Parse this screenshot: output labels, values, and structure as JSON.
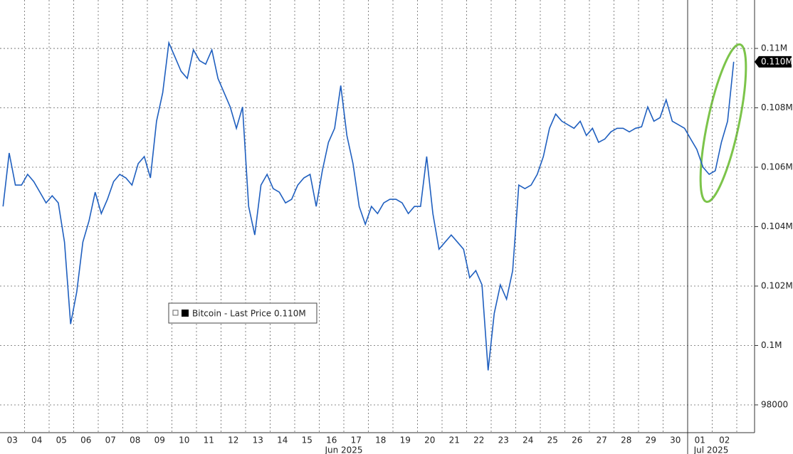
{
  "chart_data": {
    "type": "line",
    "categories": [
      "03",
      null,
      null,
      null,
      "04",
      null,
      null,
      null,
      "05",
      null,
      null,
      null,
      "06",
      null,
      null,
      null,
      "07",
      null,
      null,
      null,
      "08",
      null,
      null,
      null,
      "09",
      null,
      null,
      null,
      "10",
      null,
      null,
      null,
      "11",
      null,
      null,
      null,
      "12",
      null,
      null,
      null,
      "13",
      null,
      null,
      null,
      "14",
      null,
      null,
      null,
      "15",
      null,
      null,
      null,
      "16",
      null,
      null,
      null,
      "17",
      null,
      null,
      null,
      "18",
      null,
      null,
      null,
      "19",
      null,
      null,
      null,
      "20",
      null,
      null,
      null,
      "21",
      null,
      null,
      null,
      "22",
      null,
      null,
      null,
      "23",
      null,
      null,
      null,
      "24",
      null,
      null,
      null,
      "25",
      null,
      null,
      null,
      "26",
      null,
      null,
      null,
      "27",
      null,
      null,
      null,
      "28",
      null,
      null,
      null,
      "29",
      null,
      null,
      null,
      "30",
      null,
      null,
      null,
      "01",
      null,
      null,
      null,
      "02",
      null,
      null,
      null
    ],
    "month_labels": [
      "Jun 2025",
      "Jul 2025"
    ],
    "series": [
      {
        "name": "Bitcoin - Last Price 0.110M",
        "color": "#1f5fbf",
        "values": [
          104680,
          106480,
          105400,
          105400,
          105760,
          105520,
          105160,
          104800,
          105040,
          104800,
          103480,
          100720,
          101800,
          103480,
          104200,
          105160,
          104440,
          104920,
          105520,
          105760,
          105640,
          105400,
          106120,
          106360,
          105640,
          107550,
          108510,
          110190,
          109710,
          109230,
          108990,
          109950,
          109590,
          109470,
          109950,
          108990,
          108510,
          108030,
          107310,
          108030,
          104680,
          103720,
          105400,
          105760,
          105280,
          105160,
          104800,
          104920,
          105400,
          105640,
          105760,
          104680,
          105880,
          106840,
          107310,
          108750,
          107070,
          106120,
          104680,
          104080,
          104680,
          104440,
          104800,
          104920,
          104920,
          104800,
          104440,
          104680,
          104680,
          106360,
          104440,
          103240,
          103480,
          103720,
          103480,
          103240,
          102280,
          102520,
          102040,
          99160,
          101080,
          102040,
          101560,
          102520,
          105400,
          105280,
          105400,
          105760,
          106360,
          107310,
          107790,
          107550,
          107430,
          107310,
          107550,
          107070,
          107310,
          106840,
          106950,
          107190,
          107310,
          107310,
          107190,
          107310,
          107360,
          108030,
          107550,
          107670,
          108270,
          107550,
          107430,
          107310,
          106950,
          106600,
          106000,
          105760,
          105880,
          106840,
          107550,
          109550
        ]
      }
    ],
    "last_price": {
      "value": 109550,
      "label": "0.110M"
    },
    "ylim": [
      97065,
      111630
    ],
    "yticks": [
      98000,
      {
        "value": 100000,
        "label": "0.1M"
      },
      {
        "value": 102000,
        "label": "0.102M"
      },
      {
        "value": 104000,
        "label": "0.104M"
      },
      {
        "value": 106000,
        "label": "0.106M"
      },
      {
        "value": 108000,
        "label": "0.108M"
      },
      {
        "value": 110000,
        "label": "0.11M"
      }
    ],
    "grid": true
  }
}
